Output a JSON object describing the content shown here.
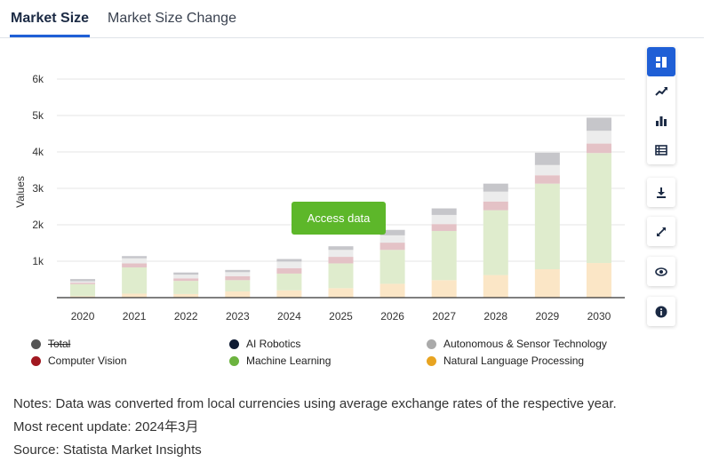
{
  "tabs": [
    {
      "label": "Market Size",
      "active": true
    },
    {
      "label": "Market Size Change",
      "active": false
    }
  ],
  "access_button": "Access data",
  "toolbar": {
    "group1": [
      "grid-icon",
      "trend-line-icon",
      "bar-chart-icon",
      "table-icon"
    ],
    "group2": [
      "download-icon",
      "expand-icon",
      "eye-icon",
      "info-icon"
    ]
  },
  "legend": [
    {
      "label": "Total",
      "color": "#555555",
      "struck": true
    },
    {
      "label": "AI Robotics",
      "color": "#0f1b33",
      "struck": false
    },
    {
      "label": "Autonomous & Sensor Technology",
      "color": "#aaaaaa",
      "struck": false
    },
    {
      "label": "Computer Vision",
      "color": "#a11820",
      "struck": false
    },
    {
      "label": "Machine Learning",
      "color": "#6cb33f",
      "struck": false
    },
    {
      "label": "Natural Language Processing",
      "color": "#e8a421",
      "struck": false
    }
  ],
  "notes": {
    "line1": "Notes: Data was converted from local currencies using average exchange rates of the respective year.",
    "line2": "Most recent update: 2024年3月",
    "line3": "Source: Statista Market Insights"
  },
  "chart_data": {
    "type": "bar",
    "stacked": true,
    "categories": [
      "2020",
      "2021",
      "2022",
      "2023",
      "2024",
      "2025",
      "2026",
      "2027",
      "2028",
      "2029",
      "2030"
    ],
    "ylabel": "Values",
    "ylim": [
      0,
      6000
    ],
    "yticks": [
      1000,
      2000,
      3000,
      4000,
      5000,
      6000
    ],
    "ytick_labels": [
      "1k",
      "2k",
      "3k",
      "4k",
      "5k",
      "6k"
    ],
    "series": [
      {
        "name": "Natural Language Processing",
        "color": "#fbe6c6",
        "values": [
          40,
          110,
          100,
          170,
          200,
          260,
          380,
          480,
          620,
          780,
          950
        ]
      },
      {
        "name": "Machine Learning",
        "color": "#dfeccd",
        "values": [
          330,
          720,
          360,
          310,
          460,
          680,
          930,
          1350,
          1780,
          2350,
          3020
        ]
      },
      {
        "name": "Computer Vision",
        "color": "#e4c2c6",
        "values": [
          40,
          110,
          70,
          110,
          150,
          180,
          200,
          190,
          240,
          230,
          260
        ]
      },
      {
        "name": "Autonomous & Sensor Technology",
        "color": "#ececec",
        "values": [
          40,
          140,
          100,
          110,
          180,
          190,
          200,
          250,
          270,
          280,
          350
        ]
      },
      {
        "name": "AI Robotics",
        "color": "#c6c6ca",
        "values": [
          60,
          60,
          60,
          60,
          70,
          100,
          150,
          180,
          220,
          340,
          360
        ]
      }
    ]
  }
}
